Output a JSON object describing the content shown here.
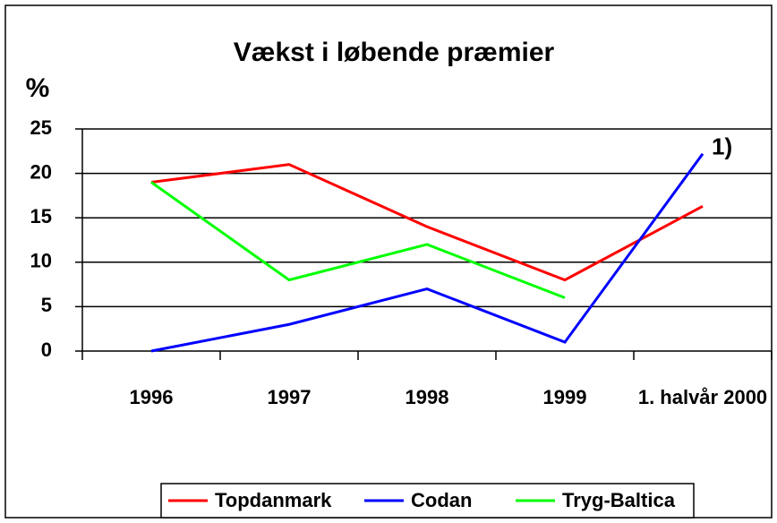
{
  "chart_data": {
    "type": "line",
    "title": "Vækst i løbende præmier",
    "y_label": "%",
    "categories": [
      "1996",
      "1997",
      "1998",
      "1999",
      "1. halvår 2000"
    ],
    "series": [
      {
        "name": "Topdanmark",
        "color": "#ff0000",
        "values": [
          19,
          21,
          14,
          8,
          16.3
        ]
      },
      {
        "name": "Codan",
        "color": "#0000ff",
        "values": [
          0,
          3,
          7,
          1,
          22.2
        ]
      },
      {
        "name": "Tryg-Baltica",
        "color": "#00ff00",
        "values": [
          19,
          8,
          12,
          6,
          null
        ]
      }
    ],
    "annotation": "1)",
    "ylim": [
      0,
      25
    ],
    "yticks": [
      0,
      5,
      10,
      15,
      20,
      25
    ],
    "grid": true,
    "legend": "bottom"
  }
}
